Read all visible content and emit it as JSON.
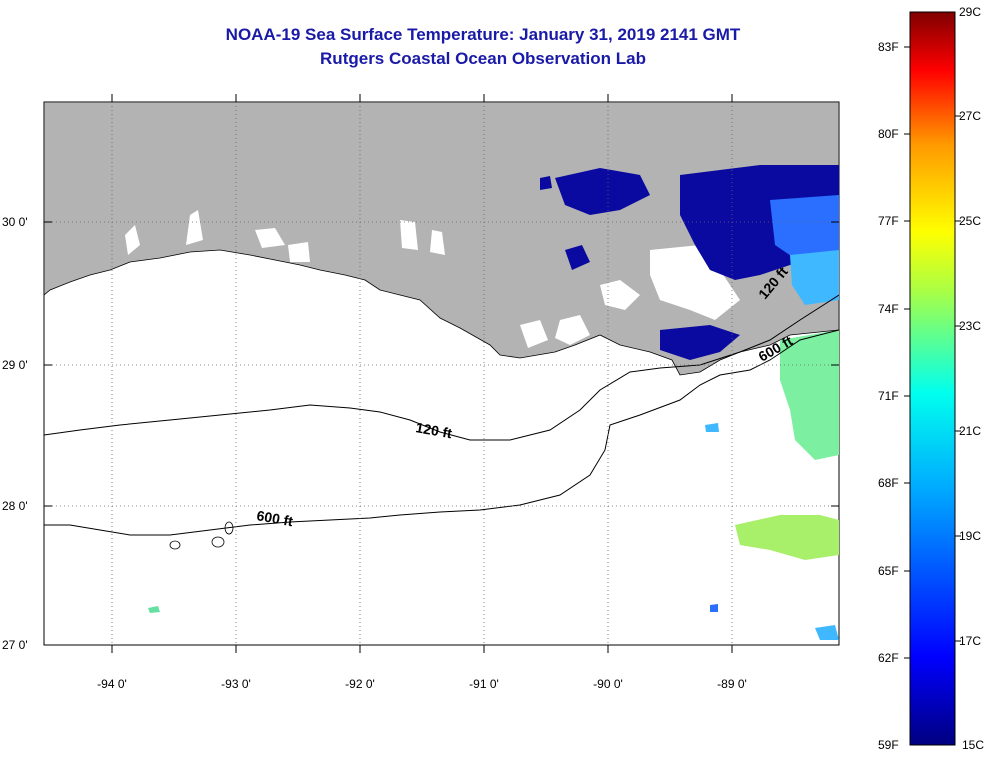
{
  "title": {
    "line1": "NOAA-19 Sea Surface Temperature:  January 31, 2019 2141 GMT",
    "line2": "Rutgers Coastal Ocean Observation Lab"
  },
  "axes": {
    "lat_labels": [
      "30 0'",
      "29 0'",
      "28 0'",
      "27 0'"
    ],
    "lon_labels": [
      "-94 0'",
      "-93 0'",
      "-92 0'",
      "-91 0'",
      "-90 0'",
      "-89 0'"
    ]
  },
  "contours": {
    "label_120_a": "120 ft",
    "label_120_b": "120 ft",
    "label_600_a": "600 ft",
    "label_600_b": "600 ft"
  },
  "colorbar": {
    "celsius": [
      "29C",
      "27C",
      "25C",
      "23C",
      "21C",
      "19C",
      "17C",
      "15C"
    ],
    "fahrenheit": [
      "83F",
      "80F",
      "77F",
      "74F",
      "71F",
      "68F",
      "65F",
      "62F",
      "59F"
    ]
  },
  "colors": {
    "land": "#b3b3b3",
    "title": "#1a1aa8"
  }
}
